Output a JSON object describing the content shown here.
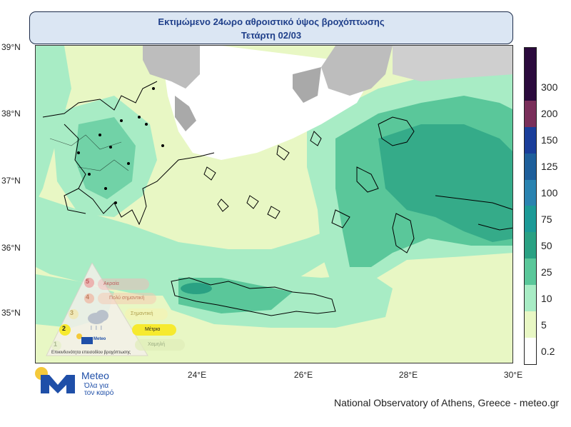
{
  "title": {
    "line1": "Εκτιμώμενο 24ωρο αθροιστικό ύψος βροχόπτωσης",
    "line2": "Τετάρτη 02/03"
  },
  "axes": {
    "lat_labels": [
      "39°N",
      "38°N",
      "37°N",
      "36°N",
      "35°N"
    ],
    "lon_labels": [
      "24°E",
      "26°E",
      "28°E",
      "30°E"
    ]
  },
  "colorbar": {
    "labels": [
      "300",
      "200",
      "150",
      "125",
      "100",
      "75",
      "50",
      "25",
      "10",
      "5",
      "0.2"
    ],
    "colors": [
      "#2b0a3d",
      "#7a2f5a",
      "#1a3e9a",
      "#1e5f9b",
      "#2a83b0",
      "#1c9a97",
      "#2aa183",
      "#5ac79a",
      "#a8ecc5",
      "#e8f7c4",
      "#ffffff"
    ]
  },
  "legend": {
    "levels": [
      "5",
      "4",
      "3",
      "2",
      "1"
    ],
    "items": [
      "Ακραία",
      "Πολύ σημαντική",
      "Σημαντική",
      "Μέτρια",
      "Χαμηλή"
    ],
    "highlight_index": 3,
    "caption": "Επικινδυνότητα επεισοδίου βροχόπτωσης",
    "brand": "Meteo"
  },
  "logo": {
    "brand": "Meteo",
    "tagline_1": "Όλα για",
    "tagline_2": "τον καιρό"
  },
  "credit": "National Observatory of Athens, Greece - meteo.gr"
}
